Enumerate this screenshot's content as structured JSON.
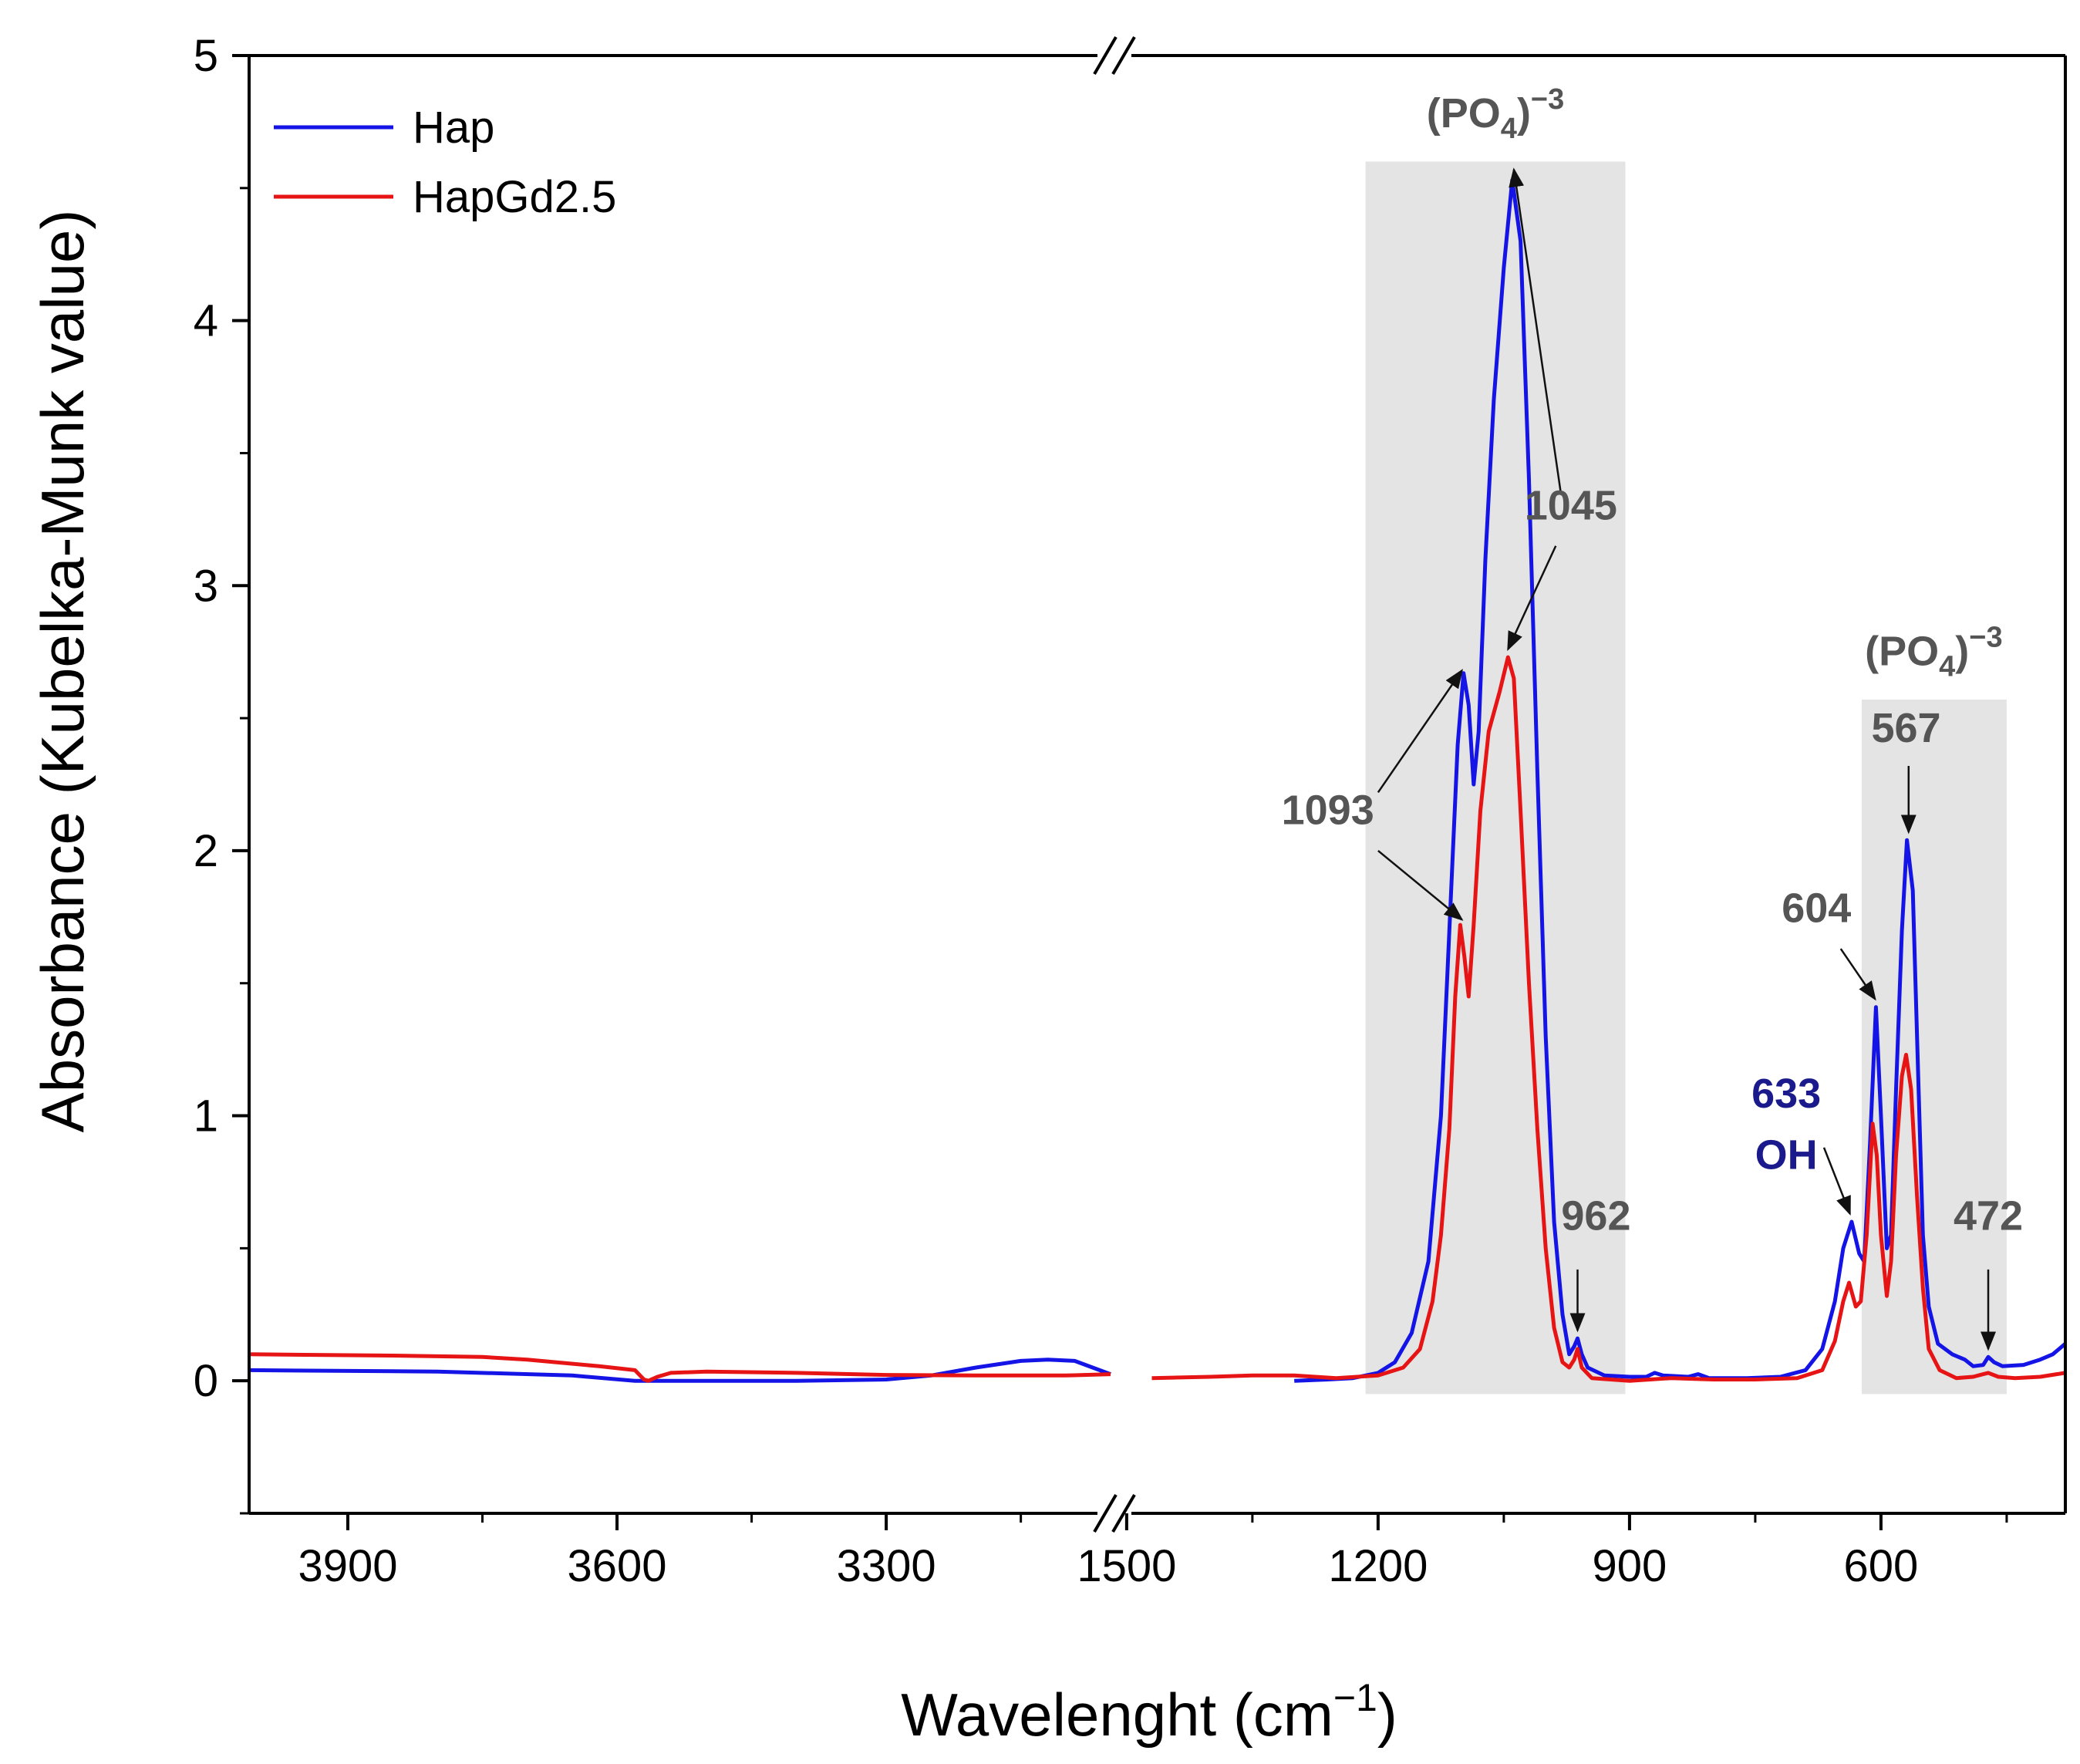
{
  "chart_data": {
    "type": "line",
    "title": "",
    "xlabel": "Wavelenght (cm",
    "xlabel_sup": "−1",
    "xlabel_close": ")",
    "ylabel": "Absorbance (Kubelka-Munk value)",
    "ylim": [
      -0.5,
      5
    ],
    "y_ticks": [
      0,
      1,
      2,
      3,
      4,
      5
    ],
    "y_tick_labels": [
      "0",
      "1",
      "2",
      "3",
      "4",
      "5"
    ],
    "x_break": true,
    "x_segments": [
      {
        "xlim": [
          4010,
          3050
        ],
        "ticks": [
          3900,
          3600,
          3300
        ],
        "tick_labels": [
          "3900",
          "3600",
          "3300"
        ],
        "minor_ticks": [
          3750,
          3450,
          3150
        ]
      },
      {
        "xlim": [
          1510,
          380
        ],
        "ticks": [
          1500,
          1200,
          900,
          600
        ],
        "tick_labels": [
          "1500",
          "1200",
          "900",
          "600"
        ],
        "minor_ticks": [
          1350,
          1050,
          750,
          450
        ]
      }
    ],
    "legend_position": "top-left",
    "series": [
      {
        "name": "Hap",
        "color": "#1414e6",
        "segments": [
          [
            [
              4010,
              0.04
            ],
            [
              3800,
              0.035
            ],
            [
              3650,
              0.02
            ],
            [
              3580,
              0.0
            ],
            [
              3560,
              0.0
            ],
            [
              3500,
              0.0
            ],
            [
              3400,
              0.0
            ],
            [
              3300,
              0.005
            ],
            [
              3250,
              0.02
            ],
            [
              3200,
              0.05
            ],
            [
              3150,
              0.075
            ],
            [
              3120,
              0.08
            ],
            [
              3090,
              0.075
            ],
            [
              3070,
              0.05
            ],
            [
              3050,
              0.025
            ]
          ],
          [
            [
              1300,
              0.0
            ],
            [
              1260,
              0.005
            ],
            [
              1230,
              0.01
            ],
            [
              1200,
              0.03
            ],
            [
              1180,
              0.07
            ],
            [
              1160,
              0.18
            ],
            [
              1140,
              0.45
            ],
            [
              1125,
              1.0
            ],
            [
              1115,
              1.7
            ],
            [
              1105,
              2.4
            ],
            [
              1098,
              2.67
            ],
            [
              1092,
              2.55
            ],
            [
              1086,
              2.25
            ],
            [
              1080,
              2.45
            ],
            [
              1072,
              3.1
            ],
            [
              1062,
              3.7
            ],
            [
              1050,
              4.2
            ],
            [
              1040,
              4.53
            ],
            [
              1030,
              4.3
            ],
            [
              1020,
              3.4
            ],
            [
              1010,
              2.3
            ],
            [
              1000,
              1.3
            ],
            [
              990,
              0.6
            ],
            [
              980,
              0.25
            ],
            [
              972,
              0.1
            ],
            [
              966,
              0.13
            ],
            [
              962,
              0.16
            ],
            [
              957,
              0.1
            ],
            [
              950,
              0.05
            ],
            [
              930,
              0.02
            ],
            [
              900,
              0.015
            ],
            [
              880,
              0.015
            ],
            [
              870,
              0.03
            ],
            [
              860,
              0.02
            ],
            [
              830,
              0.015
            ],
            [
              818,
              0.025
            ],
            [
              805,
              0.01
            ],
            [
              760,
              0.01
            ],
            [
              720,
              0.015
            ],
            [
              690,
              0.04
            ],
            [
              670,
              0.12
            ],
            [
              655,
              0.3
            ],
            [
              645,
              0.5
            ],
            [
              635,
              0.6
            ],
            [
              626,
              0.48
            ],
            [
              620,
              0.45
            ],
            [
              613,
              0.9
            ],
            [
              606,
              1.41
            ],
            [
              600,
              1.0
            ],
            [
              593,
              0.5
            ],
            [
              588,
              0.55
            ],
            [
              582,
              1.1
            ],
            [
              575,
              1.7
            ],
            [
              569,
              2.04
            ],
            [
              562,
              1.85
            ],
            [
              556,
              1.2
            ],
            [
              550,
              0.55
            ],
            [
              543,
              0.28
            ],
            [
              532,
              0.14
            ],
            [
              515,
              0.1
            ],
            [
              500,
              0.08
            ],
            [
              490,
              0.055
            ],
            [
              478,
              0.06
            ],
            [
              472,
              0.09
            ],
            [
              465,
              0.07
            ],
            [
              455,
              0.055
            ],
            [
              430,
              0.06
            ],
            [
              410,
              0.08
            ],
            [
              395,
              0.1
            ],
            [
              380,
              0.14
            ]
          ]
        ]
      },
      {
        "name": "HapGd2.5",
        "color": "#e61414",
        "segments": [
          [
            [
              4010,
              0.1
            ],
            [
              3850,
              0.095
            ],
            [
              3750,
              0.09
            ],
            [
              3700,
              0.08
            ],
            [
              3620,
              0.055
            ],
            [
              3580,
              0.04
            ],
            [
              3570,
              0.005
            ],
            [
              3565,
              0.0
            ],
            [
              3555,
              0.015
            ],
            [
              3540,
              0.03
            ],
            [
              3500,
              0.035
            ],
            [
              3400,
              0.03
            ],
            [
              3300,
              0.022
            ],
            [
              3200,
              0.02
            ],
            [
              3100,
              0.02
            ],
            [
              3050,
              0.025
            ]
          ],
          [
            [
              1470,
              0.01
            ],
            [
              1400,
              0.015
            ],
            [
              1350,
              0.02
            ],
            [
              1300,
              0.02
            ],
            [
              1250,
              0.01
            ],
            [
              1200,
              0.02
            ],
            [
              1170,
              0.05
            ],
            [
              1150,
              0.12
            ],
            [
              1135,
              0.3
            ],
            [
              1125,
              0.55
            ],
            [
              1115,
              0.95
            ],
            [
              1108,
              1.45
            ],
            [
              1102,
              1.72
            ],
            [
              1097,
              1.6
            ],
            [
              1092,
              1.45
            ],
            [
              1086,
              1.72
            ],
            [
              1078,
              2.15
            ],
            [
              1068,
              2.45
            ],
            [
              1055,
              2.6
            ],
            [
              1045,
              2.73
            ],
            [
              1038,
              2.65
            ],
            [
              1030,
              2.15
            ],
            [
              1020,
              1.5
            ],
            [
              1010,
              0.95
            ],
            [
              1000,
              0.5
            ],
            [
              990,
              0.2
            ],
            [
              980,
              0.07
            ],
            [
              972,
              0.05
            ],
            [
              966,
              0.08
            ],
            [
              962,
              0.12
            ],
            [
              957,
              0.05
            ],
            [
              945,
              0.01
            ],
            [
              900,
              0.0
            ],
            [
              850,
              0.01
            ],
            [
              800,
              0.005
            ],
            [
              750,
              0.005
            ],
            [
              700,
              0.01
            ],
            [
              670,
              0.04
            ],
            [
              655,
              0.15
            ],
            [
              645,
              0.3
            ],
            [
              638,
              0.37
            ],
            [
              630,
              0.28
            ],
            [
              624,
              0.3
            ],
            [
              617,
              0.55
            ],
            [
              610,
              0.97
            ],
            [
              605,
              0.85
            ],
            [
              600,
              0.55
            ],
            [
              593,
              0.32
            ],
            [
              588,
              0.45
            ],
            [
              582,
              0.85
            ],
            [
              575,
              1.15
            ],
            [
              570,
              1.23
            ],
            [
              564,
              1.1
            ],
            [
              557,
              0.7
            ],
            [
              550,
              0.35
            ],
            [
              543,
              0.12
            ],
            [
              530,
              0.04
            ],
            [
              510,
              0.01
            ],
            [
              490,
              0.015
            ],
            [
              478,
              0.025
            ],
            [
              472,
              0.03
            ],
            [
              460,
              0.015
            ],
            [
              440,
              0.01
            ],
            [
              410,
              0.015
            ],
            [
              380,
              0.03
            ]
          ]
        ]
      }
    ],
    "shaded_regions": [
      {
        "segment": 1,
        "x": [
          1215,
          905
        ],
        "y": [
          -0.05,
          4.6
        ]
      },
      {
        "segment": 1,
        "x": [
          623,
          450
        ],
        "y": [
          -0.05,
          2.57
        ]
      }
    ],
    "annotations": [
      {
        "segment": 1,
        "text": "(PO",
        "sub": "4",
        "close": ")",
        "sup": "−3",
        "x": 1060,
        "y": 4.73,
        "style": "anno"
      },
      {
        "segment": 1,
        "text": "(PO",
        "sub": "4",
        "close": ")",
        "sup": "−3",
        "x": 537,
        "y": 2.7,
        "style": "anno"
      },
      {
        "segment": 1,
        "text": "1045",
        "x": 970,
        "y": 3.25,
        "style": "anno"
      },
      {
        "segment": 1,
        "text": "1093",
        "x": 1260,
        "y": 2.1,
        "style": "anno"
      },
      {
        "segment": 1,
        "text": "962",
        "x": 940,
        "y": 0.57,
        "style": "anno"
      },
      {
        "segment": 1,
        "text": "633",
        "x": 713,
        "y": 1.03,
        "style": "anno-oh"
      },
      {
        "segment": 1,
        "text": "OH",
        "x": 713,
        "y": 0.8,
        "style": "anno-oh"
      },
      {
        "segment": 1,
        "text": "604",
        "x": 677,
        "y": 1.73,
        "style": "anno"
      },
      {
        "segment": 1,
        "text": "567",
        "x": 570,
        "y": 2.41,
        "style": "anno"
      },
      {
        "segment": 1,
        "text": "472",
        "x": 472,
        "y": 0.57,
        "style": "anno"
      }
    ],
    "arrows": [
      {
        "segment": 1,
        "from": [
          982,
          3.35
        ],
        "to": [
          1038,
          4.57
        ]
      },
      {
        "segment": 1,
        "from": [
          988,
          3.15
        ],
        "to": [
          1045,
          2.76
        ]
      },
      {
        "segment": 1,
        "from": [
          1200,
          2.22
        ],
        "to": [
          1100,
          2.68
        ]
      },
      {
        "segment": 1,
        "from": [
          1200,
          2.0
        ],
        "to": [
          1100,
          1.74
        ]
      },
      {
        "segment": 1,
        "from": [
          962,
          0.42
        ],
        "to": [
          962,
          0.19
        ]
      },
      {
        "segment": 1,
        "from": [
          668,
          0.88
        ],
        "to": [
          637,
          0.63
        ]
      },
      {
        "segment": 1,
        "from": [
          648,
          1.63
        ],
        "to": [
          607,
          1.44
        ]
      },
      {
        "segment": 1,
        "from": [
          567,
          2.32
        ],
        "to": [
          567,
          2.07
        ]
      },
      {
        "segment": 1,
        "from": [
          472,
          0.42
        ],
        "to": [
          472,
          0.12
        ]
      }
    ]
  }
}
